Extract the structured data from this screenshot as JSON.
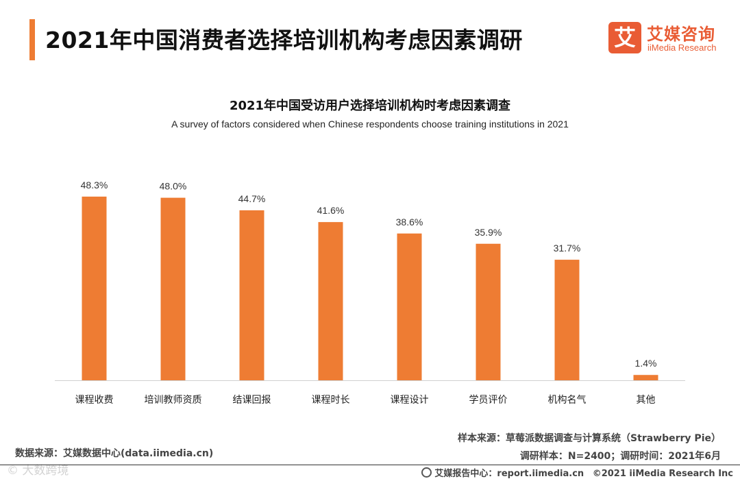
{
  "header": {
    "title": "2021年中国消费者选择培训机构考虑因素调研",
    "accent_color": "#ee7c33"
  },
  "logo": {
    "mark": "艾",
    "cn": "艾媒咨询",
    "en": "iiMedia Research"
  },
  "chart_data": {
    "type": "bar",
    "title": "2021年中国受访用户选择培训机构时考虑因素调查",
    "subtitle": "A survey of factors considered when Chinese respondents choose training institutions in 2021",
    "categories": [
      "课程收费",
      "培训教师资质",
      "结课回报",
      "课程时长",
      "课程设计",
      "学员评价",
      "机构名气",
      "其他"
    ],
    "values": [
      48.3,
      48.0,
      44.7,
      41.6,
      38.6,
      35.9,
      31.7,
      1.4
    ],
    "value_labels": [
      "48.3%",
      "48.0%",
      "44.7%",
      "41.6%",
      "38.6%",
      "35.9%",
      "31.7%",
      "1.4%"
    ],
    "unit": "%",
    "xlabel": "",
    "ylabel": "",
    "ylim": [
      0,
      50
    ],
    "grid": false,
    "bar_color": "#ee7c33"
  },
  "notes": {
    "sample_source": "样本来源：草莓派数据调查与计算系统（Strawberry Pie）",
    "sample_info": "调研样本：N=2400；调研时间：2021年6月",
    "data_source": "数据来源：艾媒数据中心(data.iimedia.cn)"
  },
  "footer": {
    "report_center": "艾媒报告中心：report.iimedia.cn",
    "copyright": "©2021  iiMedia Research  Inc",
    "watermark": "© 大数跨境"
  }
}
